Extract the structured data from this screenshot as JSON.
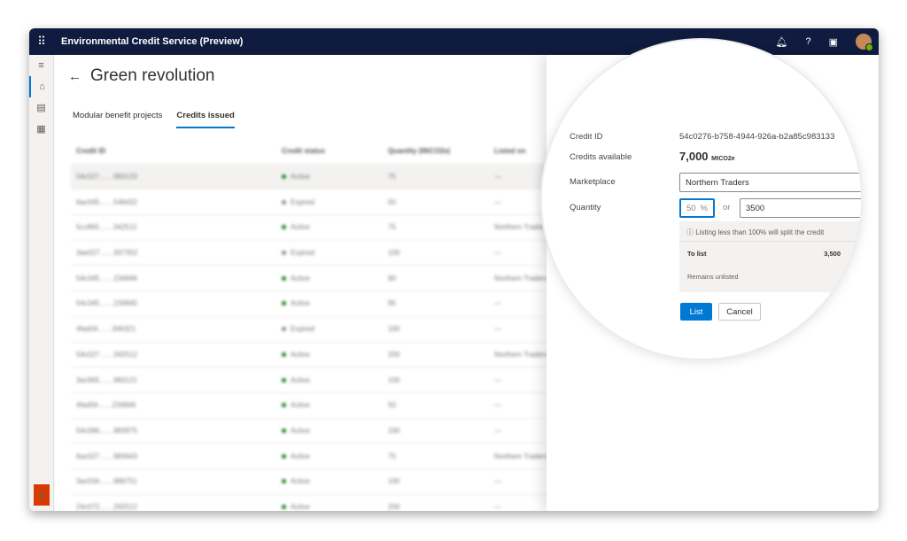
{
  "app": {
    "title": "Environmental Credit Service (Preview)",
    "user_initial": "S"
  },
  "page": {
    "title": "Green revolution",
    "tabs": [
      {
        "label": "Modular benefit projects"
      },
      {
        "label": "Credits issued"
      }
    ]
  },
  "table": {
    "columns": [
      "Credit ID",
      "Credit status",
      "Quantity (MtCO2e)",
      "Listed on"
    ],
    "rows": [
      [
        "54c027……983133",
        "Active",
        "75",
        "—"
      ],
      [
        "6ac045……546432",
        "Expired",
        "50",
        "—"
      ],
      [
        "5cc865……342512",
        "Active",
        "75",
        "Northern Traders"
      ],
      [
        "3ae027……837352",
        "Expired",
        "100",
        "—"
      ],
      [
        "54c345……234846",
        "Active",
        "90",
        "Northern Traders"
      ],
      [
        "54c345……234845",
        "Active",
        "95",
        "—"
      ],
      [
        "4fad04……346321",
        "Expired",
        "100",
        "—"
      ],
      [
        "54c027……342512",
        "Active",
        "200",
        "Northern Traders"
      ],
      [
        "3ac965……983121",
        "Active",
        "100",
        "—"
      ],
      [
        "4fad04……234846",
        "Active",
        "50",
        "—"
      ],
      [
        "54c086……983975",
        "Active",
        "100",
        "—"
      ],
      [
        "6ac027……983643",
        "Active",
        "75",
        "Northern Traders"
      ],
      [
        "3ac034……986751",
        "Active",
        "100",
        "—"
      ],
      [
        "24c072……292512",
        "Active",
        "200",
        "—"
      ]
    ]
  },
  "panel": {
    "credit_id_label": "Credit ID",
    "credit_id": "54c0276-b758-4944-926a-b2a85c983133",
    "credits_available_label": "Credits available",
    "credits_available": "7,000",
    "unit": "MtCO2e",
    "marketplace_label": "Marketplace",
    "marketplace": "Northern Traders",
    "quantity_label": "Quantity",
    "quantity_percent": "50",
    "percent_sign": "%",
    "or": "or",
    "quantity_value": "3500",
    "info": "Listing less than 100% will split the credit",
    "to_list_label": "To list",
    "to_list": "3,500",
    "remains_label": "Remains unlisted",
    "list_button": "List",
    "cancel_button": "Cancel"
  },
  "colors": {
    "header": "#0f1c3f",
    "accent": "#0078d4",
    "active": "#107c10",
    "expired": "#8a8886"
  }
}
